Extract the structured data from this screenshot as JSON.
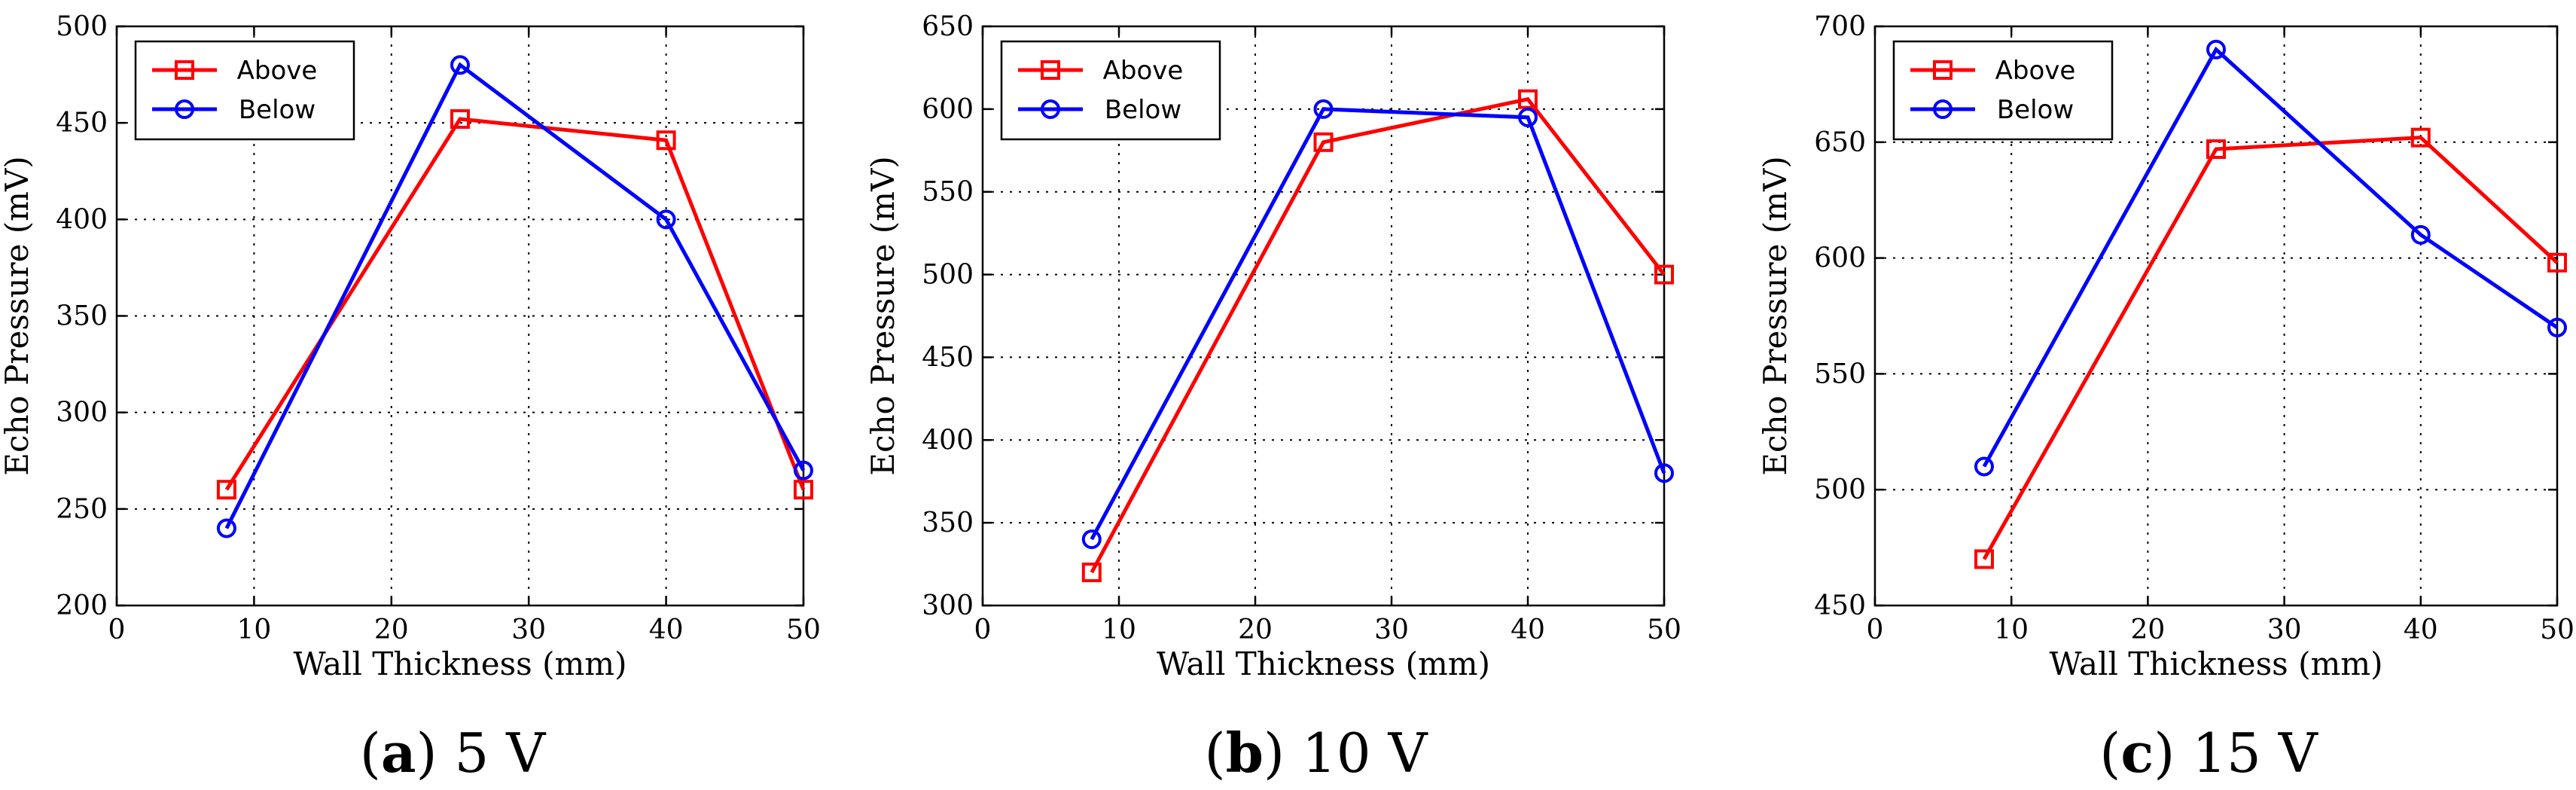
{
  "colors": {
    "above": "#ff0000",
    "below": "#0000ff"
  },
  "chart_data": [
    {
      "type": "line",
      "caption_letter": "a",
      "caption_text": "5 V",
      "xlabel": "Wall Thickness (mm)",
      "ylabel": "Echo Pressure (mV)",
      "xlim": [
        0,
        50
      ],
      "ylim": [
        200,
        500
      ],
      "xticks": [
        0,
        10,
        20,
        30,
        40,
        50
      ],
      "yticks": [
        200,
        250,
        300,
        350,
        400,
        450,
        500
      ],
      "grid": true,
      "legend": "top-left",
      "x": [
        8,
        25,
        40,
        50
      ],
      "series": [
        {
          "name": "Above",
          "color_key": "above",
          "marker": "square",
          "values": [
            260,
            452,
            441,
            260
          ]
        },
        {
          "name": "Below",
          "color_key": "below",
          "marker": "circle",
          "values": [
            240,
            480,
            400,
            270
          ]
        }
      ]
    },
    {
      "type": "line",
      "caption_letter": "b",
      "caption_text": "10 V",
      "xlabel": "Wall Thickness (mm)",
      "ylabel": "Echo Pressure (mV)",
      "xlim": [
        0,
        50
      ],
      "ylim": [
        300,
        650
      ],
      "xticks": [
        0,
        10,
        20,
        30,
        40,
        50
      ],
      "yticks": [
        300,
        350,
        400,
        450,
        500,
        550,
        600,
        650
      ],
      "grid": true,
      "legend": "top-left",
      "x": [
        8,
        25,
        40,
        50
      ],
      "series": [
        {
          "name": "Above",
          "color_key": "above",
          "marker": "square",
          "values": [
            320,
            580,
            606,
            500
          ]
        },
        {
          "name": "Below",
          "color_key": "below",
          "marker": "circle",
          "values": [
            340,
            600,
            595,
            380
          ]
        }
      ]
    },
    {
      "type": "line",
      "caption_letter": "c",
      "caption_text": "15 V",
      "xlabel": "Wall Thickness (mm)",
      "ylabel": "Echo Pressure (mV)",
      "xlim": [
        0,
        50
      ],
      "ylim": [
        450,
        700
      ],
      "xticks": [
        0,
        10,
        20,
        30,
        40,
        50
      ],
      "yticks": [
        450,
        500,
        550,
        600,
        650,
        700
      ],
      "grid": true,
      "legend": "top-left",
      "x": [
        8,
        25,
        40,
        50
      ],
      "series": [
        {
          "name": "Above",
          "color_key": "above",
          "marker": "square",
          "values": [
            470,
            647,
            652,
            598
          ]
        },
        {
          "name": "Below",
          "color_key": "below",
          "marker": "circle",
          "values": [
            510,
            690,
            610,
            570
          ]
        }
      ]
    }
  ]
}
